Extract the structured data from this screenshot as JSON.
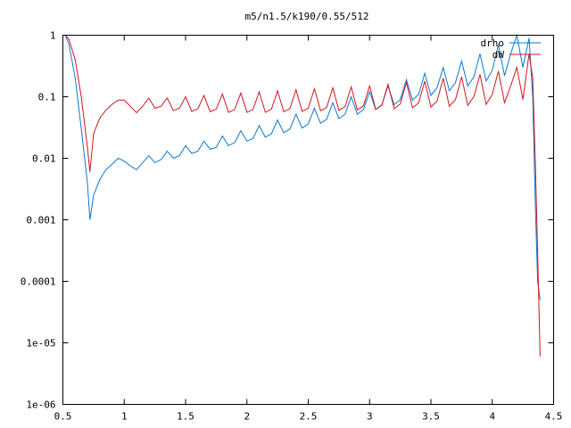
{
  "chart_data": {
    "type": "line",
    "title": "m5/n1.5/k190/0.55/512",
    "xlabel": "",
    "ylabel": "",
    "xlim": [
      0.5,
      4.5
    ],
    "ylim": [
      1e-06,
      1
    ],
    "yscale": "log",
    "grid": false,
    "legend_position": "top-right",
    "x_ticks": [
      0.5,
      1,
      1.5,
      2,
      2.5,
      3,
      3.5,
      4,
      4.5
    ],
    "x_tick_labels": [
      "0.5",
      "1",
      "1.5",
      "2",
      "2.5",
      "3",
      "3.5",
      "4",
      "4.5"
    ],
    "y_ticks": [
      1,
      0.1,
      0.01,
      0.001,
      0.0001,
      1e-05,
      1e-06
    ],
    "y_tick_labels": [
      "1",
      "0.1",
      "0.01",
      "0.001",
      "0.0001",
      "1e-05",
      "1e-06"
    ],
    "series": [
      {
        "name": "drho",
        "color": "#0a78d2",
        "x": [
          0.52,
          0.55,
          0.6,
          0.65,
          0.7,
          0.72,
          0.75,
          0.8,
          0.85,
          0.9,
          0.95,
          1.0,
          1.05,
          1.1,
          1.15,
          1.2,
          1.25,
          1.3,
          1.35,
          1.4,
          1.45,
          1.5,
          1.55,
          1.6,
          1.65,
          1.7,
          1.75,
          1.8,
          1.85,
          1.9,
          1.95,
          2.0,
          2.05,
          2.1,
          2.15,
          2.2,
          2.25,
          2.3,
          2.35,
          2.4,
          2.45,
          2.5,
          2.55,
          2.6,
          2.65,
          2.7,
          2.75,
          2.8,
          2.85,
          2.9,
          2.95,
          3.0,
          3.05,
          3.1,
          3.15,
          3.2,
          3.25,
          3.3,
          3.35,
          3.4,
          3.45,
          3.5,
          3.55,
          3.6,
          3.65,
          3.7,
          3.75,
          3.8,
          3.85,
          3.9,
          3.95,
          4.0,
          4.05,
          4.1,
          4.15,
          4.2,
          4.25,
          4.3,
          4.33,
          4.35,
          4.37,
          4.39
        ],
        "y": [
          1.0,
          0.7,
          0.2,
          0.03,
          0.004,
          0.001,
          0.0025,
          0.0045,
          0.0065,
          0.008,
          0.01,
          0.009,
          0.0075,
          0.0065,
          0.0085,
          0.011,
          0.0085,
          0.0095,
          0.013,
          0.01,
          0.011,
          0.016,
          0.012,
          0.013,
          0.019,
          0.014,
          0.015,
          0.023,
          0.016,
          0.018,
          0.028,
          0.019,
          0.021,
          0.034,
          0.022,
          0.025,
          0.042,
          0.026,
          0.03,
          0.052,
          0.031,
          0.036,
          0.065,
          0.037,
          0.043,
          0.08,
          0.044,
          0.052,
          0.1,
          0.052,
          0.062,
          0.12,
          0.062,
          0.074,
          0.15,
          0.074,
          0.09,
          0.19,
          0.088,
          0.11,
          0.24,
          0.105,
          0.14,
          0.3,
          0.125,
          0.17,
          0.38,
          0.15,
          0.21,
          0.5,
          0.18,
          0.27,
          0.7,
          0.22,
          0.5,
          1.0,
          0.3,
          0.9,
          0.1,
          0.002,
          0.0001,
          5e-05
        ]
      },
      {
        "name": "dW",
        "color": "#d4141e",
        "x": [
          0.52,
          0.55,
          0.6,
          0.65,
          0.7,
          0.72,
          0.75,
          0.8,
          0.85,
          0.9,
          0.95,
          1.0,
          1.05,
          1.1,
          1.15,
          1.2,
          1.25,
          1.3,
          1.35,
          1.4,
          1.45,
          1.5,
          1.55,
          1.6,
          1.65,
          1.7,
          1.75,
          1.8,
          1.85,
          1.9,
          1.95,
          2.0,
          2.05,
          2.1,
          2.15,
          2.2,
          2.25,
          2.3,
          2.35,
          2.4,
          2.45,
          2.5,
          2.55,
          2.6,
          2.65,
          2.7,
          2.75,
          2.8,
          2.85,
          2.9,
          2.95,
          3.0,
          3.05,
          3.1,
          3.15,
          3.2,
          3.25,
          3.3,
          3.35,
          3.4,
          3.45,
          3.5,
          3.55,
          3.6,
          3.65,
          3.7,
          3.75,
          3.8,
          3.85,
          3.9,
          3.95,
          4.0,
          4.05,
          4.1,
          4.15,
          4.2,
          4.25,
          4.3,
          4.33,
          4.35,
          4.37,
          4.39
        ],
        "y": [
          1.0,
          0.85,
          0.4,
          0.1,
          0.015,
          0.006,
          0.025,
          0.045,
          0.06,
          0.075,
          0.088,
          0.088,
          0.07,
          0.055,
          0.07,
          0.095,
          0.065,
          0.07,
          0.095,
          0.06,
          0.065,
          0.1,
          0.058,
          0.064,
          0.105,
          0.057,
          0.063,
          0.11,
          0.056,
          0.062,
          0.115,
          0.056,
          0.062,
          0.12,
          0.056,
          0.063,
          0.125,
          0.057,
          0.064,
          0.13,
          0.058,
          0.065,
          0.135,
          0.059,
          0.067,
          0.14,
          0.06,
          0.069,
          0.145,
          0.061,
          0.071,
          0.15,
          0.062,
          0.073,
          0.16,
          0.064,
          0.076,
          0.17,
          0.066,
          0.08,
          0.18,
          0.068,
          0.085,
          0.2,
          0.07,
          0.09,
          0.21,
          0.072,
          0.1,
          0.23,
          0.075,
          0.11,
          0.26,
          0.08,
          0.15,
          0.3,
          0.09,
          0.5,
          0.2,
          0.01,
          0.0003,
          6e-06
        ]
      }
    ]
  }
}
